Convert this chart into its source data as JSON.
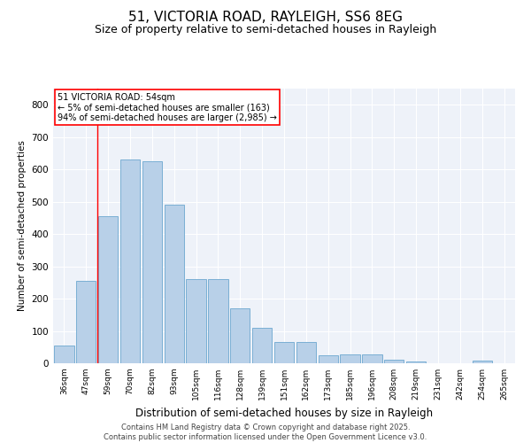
{
  "title": "51, VICTORIA ROAD, RAYLEIGH, SS6 8EG",
  "subtitle": "Size of property relative to semi-detached houses in Rayleigh",
  "xlabel": "Distribution of semi-detached houses by size in Rayleigh",
  "ylabel": "Number of semi-detached properties",
  "categories": [
    "36sqm",
    "47sqm",
    "59sqm",
    "70sqm",
    "82sqm",
    "93sqm",
    "105sqm",
    "116sqm",
    "128sqm",
    "139sqm",
    "151sqm",
    "162sqm",
    "173sqm",
    "185sqm",
    "196sqm",
    "208sqm",
    "219sqm",
    "231sqm",
    "242sqm",
    "254sqm",
    "265sqm"
  ],
  "values": [
    55,
    255,
    455,
    630,
    625,
    490,
    260,
    260,
    170,
    110,
    65,
    65,
    25,
    28,
    28,
    12,
    5,
    0,
    0,
    8,
    0
  ],
  "bar_color": "#b8d0e8",
  "bar_edge_color": "#7aafd4",
  "annotation_title": "51 VICTORIA ROAD: 54sqm",
  "annotation_line1": "← 5% of semi-detached houses are smaller (163)",
  "annotation_line2": "94% of semi-detached houses are larger (2,985) →",
  "redline_x": 1.5,
  "ylim": [
    0,
    850
  ],
  "yticks": [
    0,
    100,
    200,
    300,
    400,
    500,
    600,
    700,
    800
  ],
  "footer_line1": "Contains HM Land Registry data © Crown copyright and database right 2025.",
  "footer_line2": "Contains public sector information licensed under the Open Government Licence v3.0.",
  "background_color": "#eef2f9",
  "title_fontsize": 11,
  "subtitle_fontsize": 9,
  "bar_width": 0.9
}
